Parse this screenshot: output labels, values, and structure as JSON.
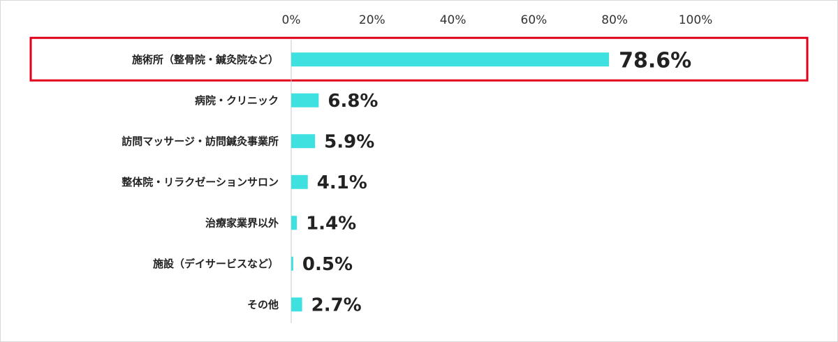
{
  "chart_data": {
    "type": "bar",
    "orientation": "horizontal",
    "categories": [
      "施術所（整骨院・鍼灸院など）",
      "病院・クリニック",
      "訪問マッサージ・訪問鍼灸事業所",
      "整体院・リラクゼーションサロン",
      "治療家業界以外",
      "施設（デイサービスなど）",
      "その他"
    ],
    "values": [
      78.6,
      6.8,
      5.9,
      4.1,
      1.4,
      0.5,
      2.7
    ],
    "value_labels": [
      "78.6%",
      "6.8%",
      "5.9%",
      "4.1%",
      "1.4%",
      "0.5%",
      "2.7%"
    ],
    "x_ticks": [
      "0%",
      "20%",
      "40%",
      "60%",
      "80%",
      "100%"
    ],
    "x_tick_values": [
      0,
      20,
      40,
      60,
      80,
      100
    ],
    "xlim": [
      0,
      100
    ],
    "axis_position": "top",
    "grid": false,
    "highlighted_category_index": 0,
    "colors": {
      "bar": "#3ee0e0",
      "highlight_border": "#e0001a",
      "axis": "#c8c8c8",
      "text": "#222222",
      "frame_border": "#d9d9d9"
    }
  }
}
